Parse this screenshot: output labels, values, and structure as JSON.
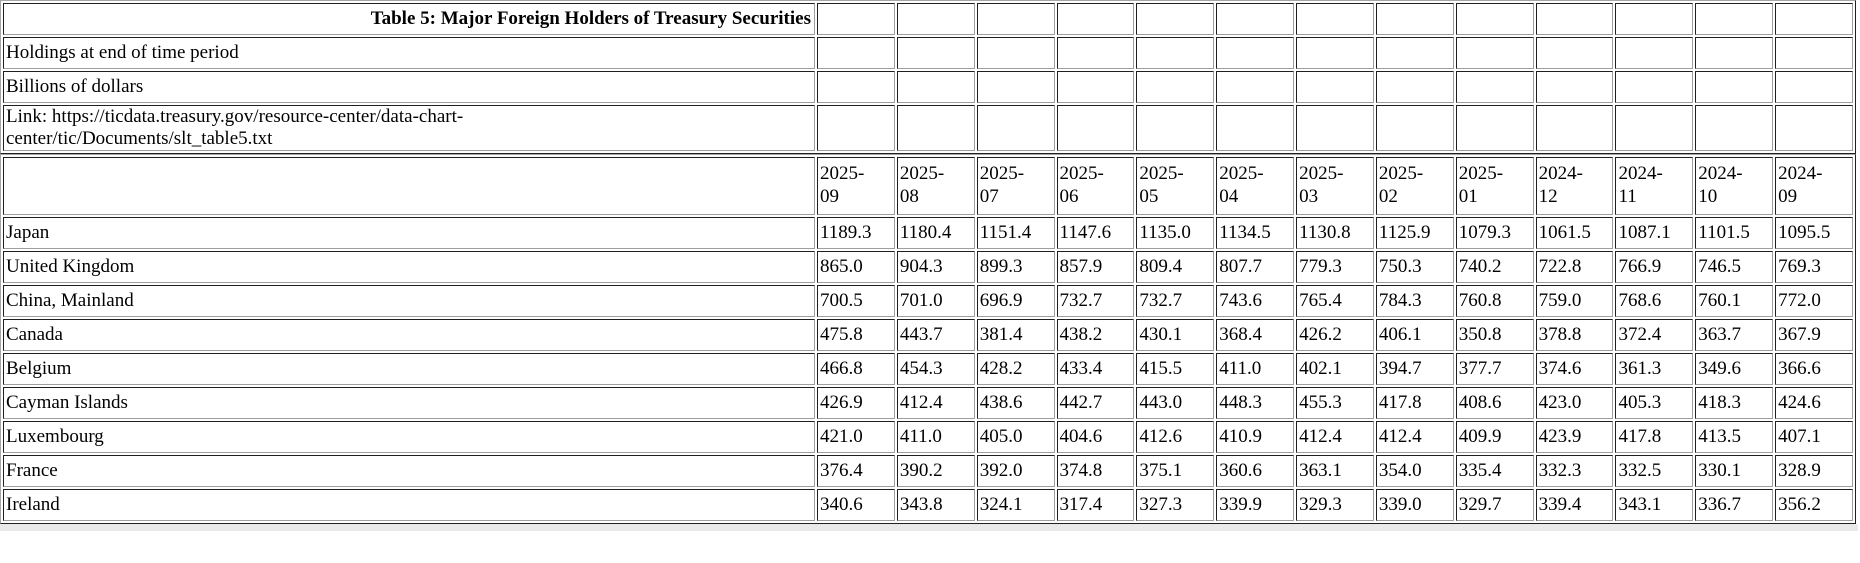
{
  "chart_data": {
    "type": "table",
    "title": "Table 5: Major Foreign Holders of Treasury Securities",
    "period_note": "Holdings at end of time period",
    "unit_note": "Billions of dollars",
    "link": "Link: https://ticdata.treasury.gov/resource-center/data-chart-center/tic/Documents/slt_table5.txt",
    "columns": [
      "2025-09",
      "2025-08",
      "2025-07",
      "2025-06",
      "2025-05",
      "2025-04",
      "2025-03",
      "2025-02",
      "2025-01",
      "2024-12",
      "2024-11",
      "2024-10",
      "2024-09"
    ],
    "rows": [
      {
        "label": "Japan",
        "values": [
          "1189.3",
          "1180.4",
          "1151.4",
          "1147.6",
          "1135.0",
          "1134.5",
          "1130.8",
          "1125.9",
          "1079.3",
          "1061.5",
          "1087.1",
          "1101.5",
          "1095.5"
        ]
      },
      {
        "label": "United Kingdom",
        "values": [
          "865.0",
          "904.3",
          "899.3",
          "857.9",
          "809.4",
          "807.7",
          "779.3",
          "750.3",
          "740.2",
          "722.8",
          "766.9",
          "746.5",
          "769.3"
        ]
      },
      {
        "label": "China, Mainland",
        "values": [
          "700.5",
          "701.0",
          "696.9",
          "732.7",
          "732.7",
          "743.6",
          "765.4",
          "784.3",
          "760.8",
          "759.0",
          "768.6",
          "760.1",
          "772.0"
        ]
      },
      {
        "label": "Canada",
        "values": [
          "475.8",
          "443.7",
          "381.4",
          "438.2",
          "430.1",
          "368.4",
          "426.2",
          "406.1",
          "350.8",
          "378.8",
          "372.4",
          "363.7",
          "367.9"
        ]
      },
      {
        "label": "Belgium",
        "values": [
          "466.8",
          "454.3",
          "428.2",
          "433.4",
          "415.5",
          "411.0",
          "402.1",
          "394.7",
          "377.7",
          "374.6",
          "361.3",
          "349.6",
          "366.6"
        ]
      },
      {
        "label": "Cayman Islands",
        "values": [
          "426.9",
          "412.4",
          "438.6",
          "442.7",
          "443.0",
          "448.3",
          "455.3",
          "417.8",
          "408.6",
          "423.0",
          "405.3",
          "418.3",
          "424.6"
        ]
      },
      {
        "label": "Luxembourg",
        "values": [
          "421.0",
          "411.0",
          "405.0",
          "404.6",
          "412.6",
          "410.9",
          "412.4",
          "412.4",
          "409.9",
          "423.9",
          "417.8",
          "413.5",
          "407.1"
        ]
      },
      {
        "label": "France",
        "values": [
          "376.4",
          "390.2",
          "392.0",
          "374.8",
          "375.1",
          "360.6",
          "363.1",
          "354.0",
          "335.4",
          "332.3",
          "332.5",
          "330.1",
          "328.9"
        ]
      },
      {
        "label": "Ireland",
        "values": [
          "340.6",
          "343.8",
          "324.1",
          "317.4",
          "327.3",
          "339.9",
          "329.3",
          "339.0",
          "329.7",
          "339.4",
          "343.1",
          "336.7",
          "356.2"
        ]
      }
    ]
  }
}
